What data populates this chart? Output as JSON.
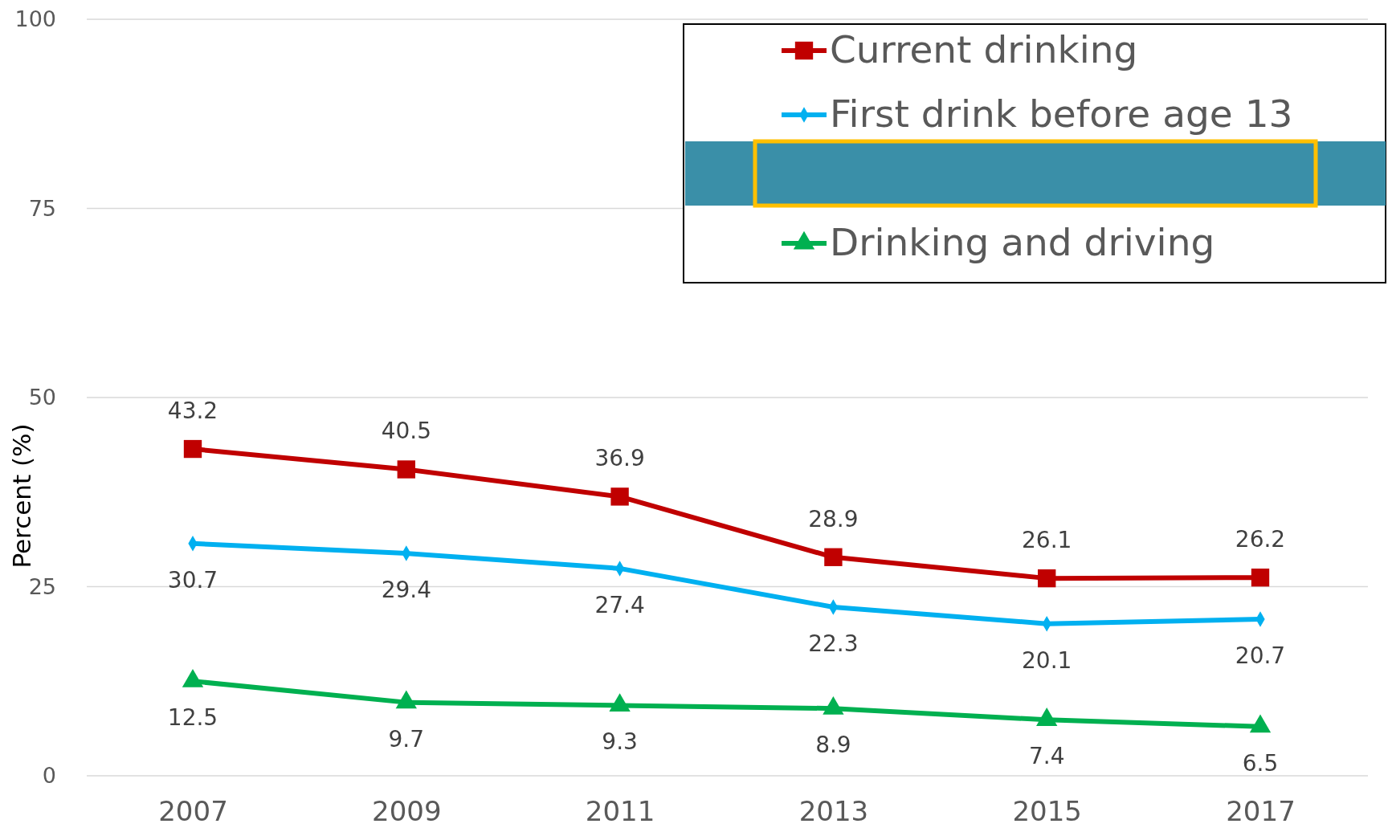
{
  "chart_data": {
    "type": "line",
    "ylabel": "Percent (%)",
    "categories": [
      "2007",
      "2009",
      "2011",
      "2013",
      "2015",
      "2017"
    ],
    "series": [
      {
        "name": "Current drinking",
        "color": "#c00000",
        "marker": "square",
        "values": [
          43.2,
          40.5,
          36.9,
          28.9,
          26.1,
          26.2
        ]
      },
      {
        "name": "First drink before age 13",
        "color": "#00b0f0",
        "marker": "diamond",
        "values": [
          30.7,
          29.4,
          27.4,
          22.3,
          20.1,
          20.7
        ]
      },
      {
        "name": "Drinking and driving",
        "color": "#00b050",
        "marker": "triangle",
        "values": [
          12.5,
          9.7,
          9.3,
          8.9,
          7.4,
          6.5
        ]
      }
    ],
    "ylim": [
      0,
      100
    ],
    "yticks": [
      0,
      25,
      50,
      75,
      100
    ],
    "grid": "y",
    "legend": "top right",
    "data_labels": true
  }
}
